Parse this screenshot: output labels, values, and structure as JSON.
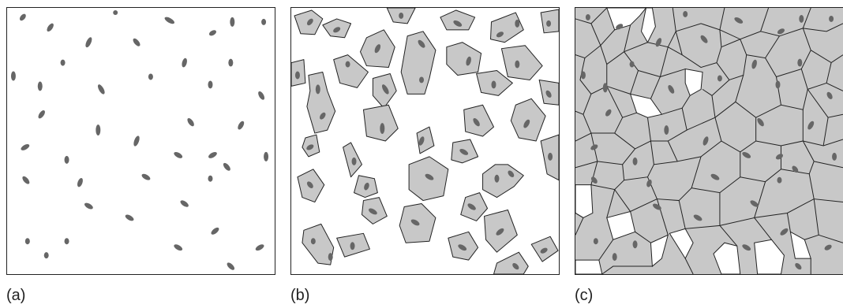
{
  "figure": {
    "panels": [
      {
        "label": "(a)"
      },
      {
        "label": "(b)"
      },
      {
        "label": "(c)"
      }
    ]
  },
  "colors": {
    "nucleus": "#666666",
    "cell_fill": "#c8c8c8",
    "outline": "#222222",
    "background": "#ffffff"
  }
}
